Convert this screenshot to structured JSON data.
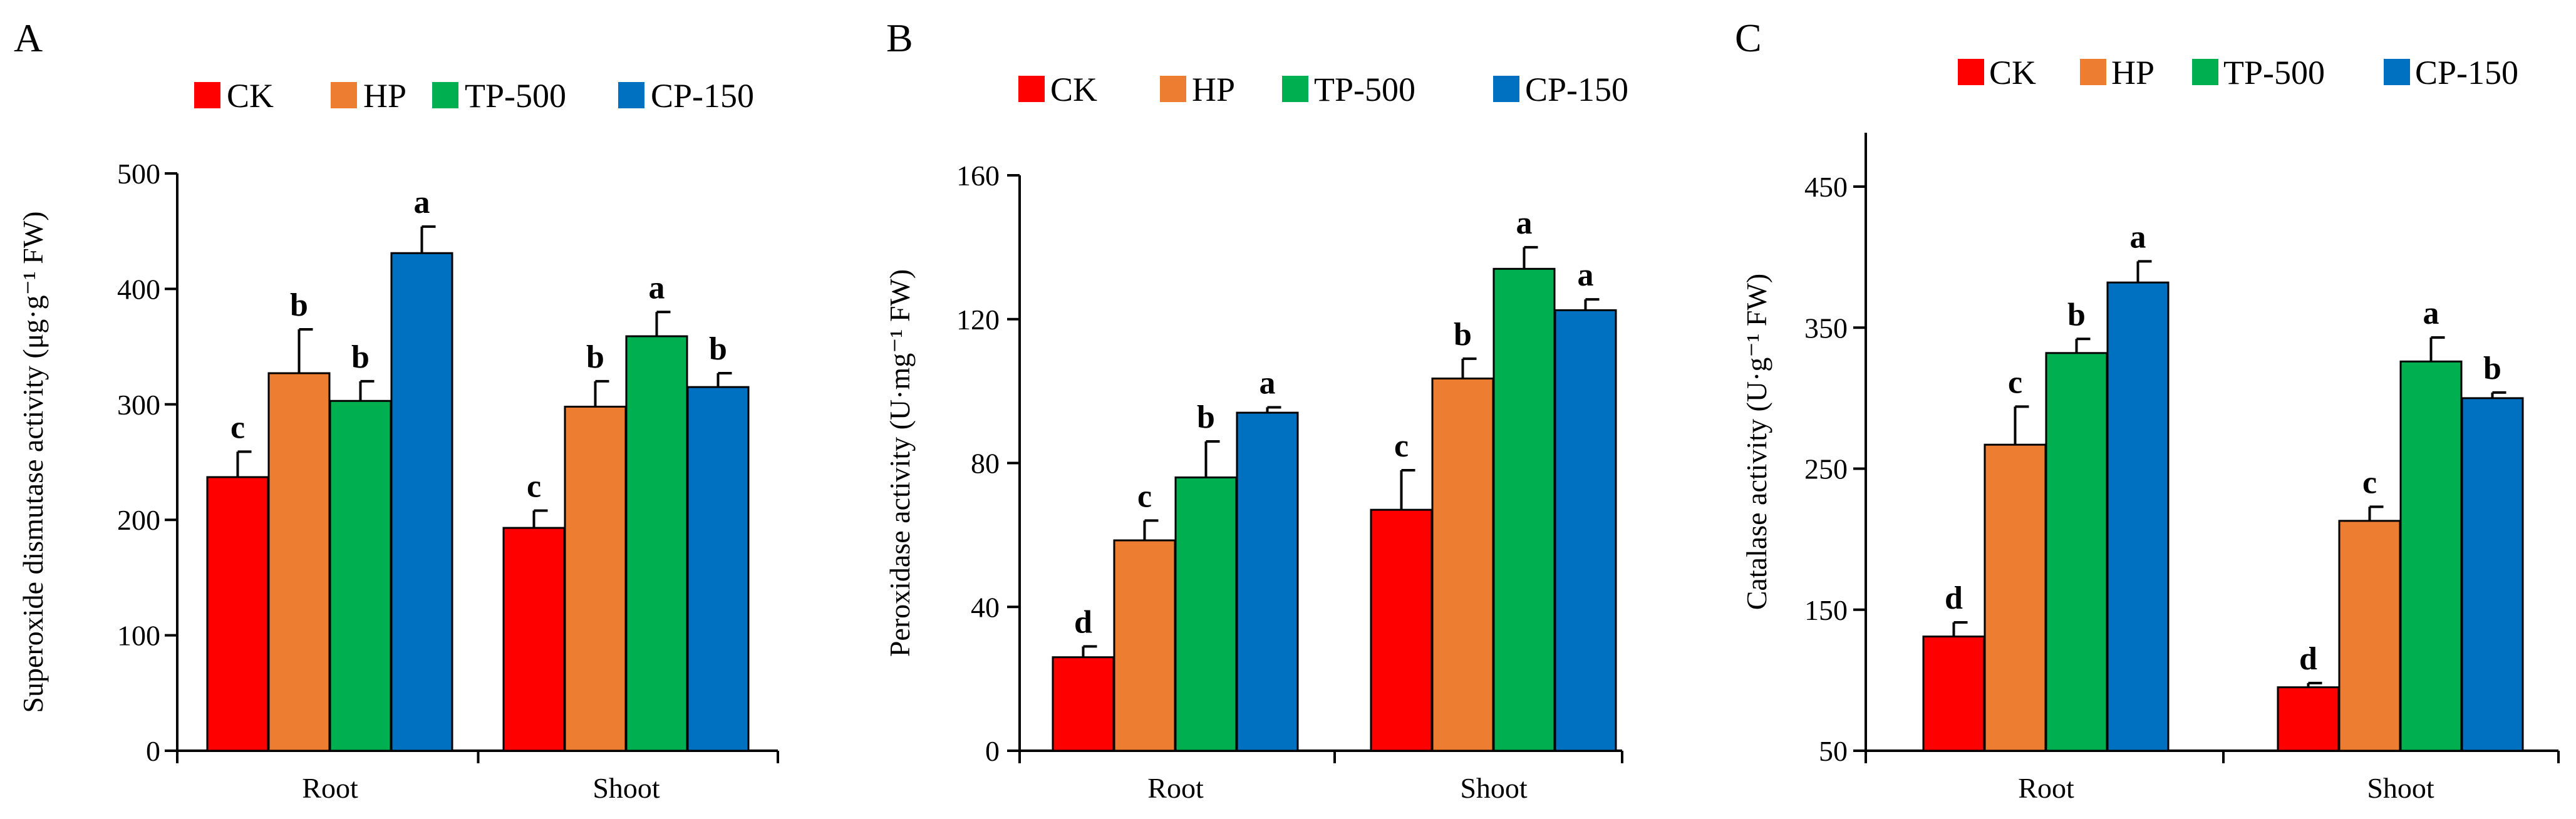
{
  "colors": {
    "CK": "#ff0000",
    "HP": "#ed7d31",
    "TP-500": "#00b050",
    "CP-150": "#0070c0"
  },
  "chart_data": [
    {
      "panel": "A",
      "type": "bar",
      "ylabel": "Superoxide dismutase activity (μg·g⁻¹ FW)",
      "ylim": [
        0,
        500
      ],
      "yticks": [
        0,
        100,
        200,
        300,
        400,
        500
      ],
      "legend_position": "top",
      "categories": [
        "Root",
        "Shoot"
      ],
      "series": [
        {
          "name": "CK",
          "values": [
            237,
            193
          ],
          "errors": [
            22,
            15
          ],
          "letters": [
            "c",
            "c"
          ]
        },
        {
          "name": "HP",
          "values": [
            327,
            298
          ],
          "errors": [
            38,
            22
          ],
          "letters": [
            "b",
            "b"
          ]
        },
        {
          "name": "TP-500",
          "values": [
            303,
            359
          ],
          "errors": [
            17,
            21
          ],
          "letters": [
            "b",
            "a"
          ]
        },
        {
          "name": "CP-150",
          "values": [
            431,
            315
          ],
          "errors": [
            23,
            12
          ],
          "letters": [
            "a",
            "b"
          ]
        }
      ]
    },
    {
      "panel": "B",
      "type": "bar",
      "ylabel": "Peroxidase activity (U·mg⁻¹ FW)",
      "ylim": [
        0,
        160
      ],
      "yticks": [
        0,
        40,
        80,
        120,
        160
      ],
      "legend_position": "top",
      "categories": [
        "Root",
        "Shoot"
      ],
      "series": [
        {
          "name": "CK",
          "values": [
            26,
            67
          ],
          "errors": [
            3,
            11
          ],
          "letters": [
            "d",
            "c"
          ]
        },
        {
          "name": "HP",
          "values": [
            58.5,
            103.5
          ],
          "errors": [
            5.5,
            5.5
          ],
          "letters": [
            "c",
            "b"
          ]
        },
        {
          "name": "TP-500",
          "values": [
            76,
            134
          ],
          "errors": [
            10,
            6
          ],
          "letters": [
            "b",
            "a"
          ]
        },
        {
          "name": "CP-150",
          "values": [
            94,
            122.5
          ],
          "errors": [
            1.5,
            3
          ],
          "letters": [
            "a",
            "a"
          ]
        }
      ]
    },
    {
      "panel": "C",
      "type": "bar",
      "ylabel": "Catalase activity (U·g⁻¹ FW)",
      "ylim": [
        50,
        500
      ],
      "yticks": [
        50,
        150,
        250,
        350,
        450
      ],
      "legend_position": "top",
      "categories": [
        "Root",
        "Shoot"
      ],
      "series": [
        {
          "name": "CK",
          "values": [
            131,
            95
          ],
          "errors": [
            10,
            3
          ],
          "letters": [
            "d",
            "d"
          ]
        },
        {
          "name": "HP",
          "values": [
            267,
            213
          ],
          "errors": [
            27,
            10
          ],
          "letters": [
            "c",
            "c"
          ]
        },
        {
          "name": "TP-500",
          "values": [
            332,
            326
          ],
          "errors": [
            10,
            17
          ],
          "letters": [
            "b",
            "a"
          ]
        },
        {
          "name": "CP-150",
          "values": [
            382,
            300
          ],
          "errors": [
            15,
            4
          ],
          "letters": [
            "a",
            "b"
          ]
        }
      ]
    }
  ]
}
